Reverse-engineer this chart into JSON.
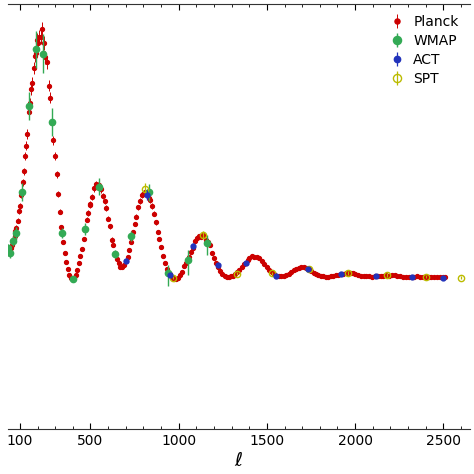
{
  "xlabel": "$\\ell$",
  "ylabel": "",
  "xlim": [
    30,
    2650
  ],
  "legend_labels": [
    "Planck",
    "WMAP",
    "ACT",
    "SPT"
  ],
  "planck_color": "#cc0000",
  "wmap_color": "#33aa55",
  "act_color": "#2233bb",
  "spt_color": "#bbbb00",
  "background_color": "#ffffff",
  "figsize": [
    4.74,
    4.74
  ],
  "dpi": 100
}
